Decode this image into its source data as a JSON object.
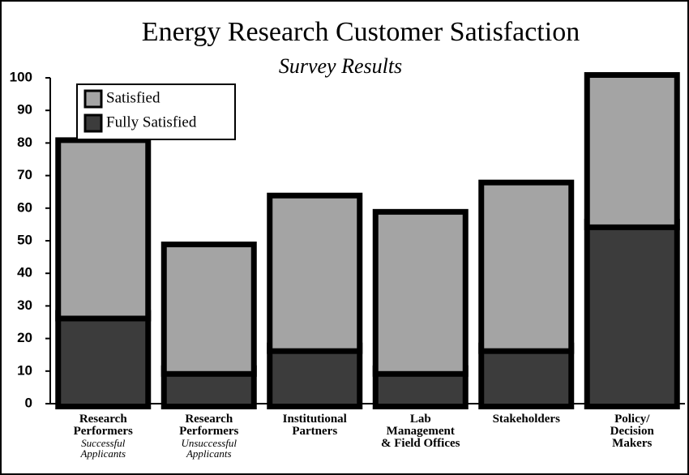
{
  "chart_data": {
    "type": "stacked_bar",
    "title": "Energy Research Customer Satisfaction",
    "subtitle": "Survey Results",
    "categories": [
      [
        "Research",
        "Performers"
      ],
      [
        "Research",
        "Performers"
      ],
      [
        "Institutional",
        "Partners"
      ],
      [
        "Lab",
        "Management",
        "& Field Offices"
      ],
      [
        "Stakeholders"
      ],
      [
        "Policy/",
        "Decision",
        "Makers"
      ]
    ],
    "category_notes": [
      [
        "Successful",
        "Applicants"
      ],
      [
        "Unsuccessful",
        "Applicants"
      ],
      null,
      null,
      null,
      null
    ],
    "series": [
      {
        "name": "Fully Satisfied",
        "color": "#3c3c3c",
        "values": [
          27,
          10,
          17,
          10,
          17,
          55
        ]
      },
      {
        "name": "Satisfied",
        "color": "#a4a4a4",
        "values": [
          53,
          38,
          46,
          48,
          50,
          45
        ]
      }
    ],
    "legend_order": [
      1,
      0
    ],
    "legend": "upper left",
    "ylim": [
      0,
      100
    ],
    "yticks": [
      0,
      10,
      20,
      30,
      40,
      50,
      60,
      70,
      80,
      90,
      100
    ]
  }
}
